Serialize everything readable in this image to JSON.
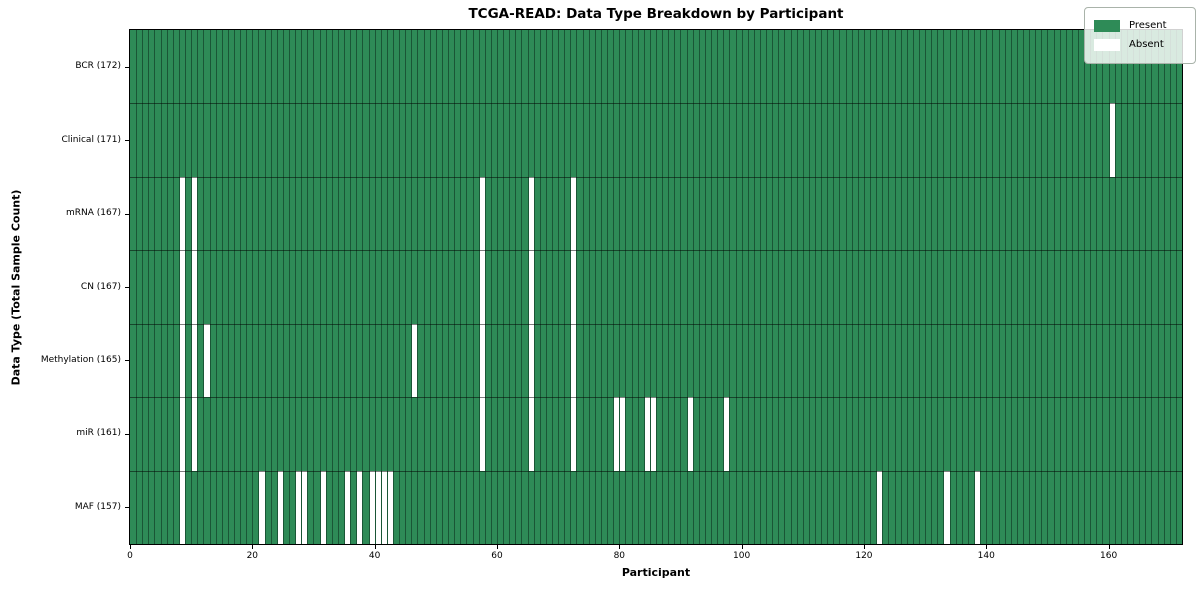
{
  "title": "TCGA-READ: Data Type Breakdown by Participant",
  "xlabel": "Participant",
  "ylabel": "Data Type (Total Sample Count)",
  "n_participants": 172,
  "x_ticks": [
    0,
    20,
    40,
    60,
    80,
    100,
    120,
    140,
    160
  ],
  "colors": {
    "present": "#2e8b57",
    "absent": "#ffffff"
  },
  "legend": {
    "items": [
      {
        "label": "Present",
        "color": "#2e8b57"
      },
      {
        "label": "Absent",
        "color": "#ffffff"
      }
    ]
  },
  "chart_data": {
    "type": "heatmap",
    "title": "TCGA-READ: Data Type Breakdown by Participant",
    "xlabel": "Participant",
    "ylabel": "Data Type (Total Sample Count)",
    "x_range": [
      0,
      172
    ],
    "legend_position": "upper right",
    "cell_states": [
      "Present",
      "Absent"
    ],
    "rows": [
      {
        "label": "BCR (172)",
        "total_sample_count": 172,
        "absent_participants": []
      },
      {
        "label": "Clinical (171)",
        "total_sample_count": 171,
        "absent_participants": [
          160
        ]
      },
      {
        "label": "mRNA (167)",
        "total_sample_count": 167,
        "absent_participants": [
          8,
          10,
          57,
          65,
          72
        ]
      },
      {
        "label": "CN (167)",
        "total_sample_count": 167,
        "absent_participants": [
          8,
          10,
          57,
          65,
          72
        ]
      },
      {
        "label": "Methylation (165)",
        "total_sample_count": 165,
        "absent_participants": [
          8,
          10,
          12,
          46,
          57,
          65,
          72
        ]
      },
      {
        "label": "miR (161)",
        "total_sample_count": 161,
        "absent_participants": [
          8,
          10,
          57,
          65,
          72,
          79,
          80,
          84,
          85,
          91,
          97
        ]
      },
      {
        "label": "MAF (157)",
        "total_sample_count": 157,
        "absent_participants": [
          8,
          21,
          24,
          27,
          28,
          31,
          35,
          37,
          39,
          40,
          41,
          42,
          122,
          133,
          138
        ]
      }
    ]
  }
}
